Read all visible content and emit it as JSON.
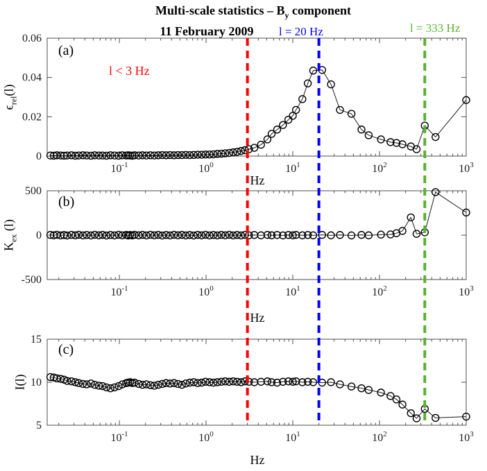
{
  "figure": {
    "title": {
      "pre": "Multi-scale statistics – B",
      "sub": "y",
      "post": " component"
    },
    "subtitle": "11 February 2009",
    "vlines": [
      {
        "x": 3,
        "color": "#ff0000",
        "label": "l < 3 Hz"
      },
      {
        "x": 20,
        "color": "#0000ff",
        "label": "l = 20 Hz"
      },
      {
        "x": 333,
        "color": "#56b42c",
        "label": "l = 333 Hz"
      }
    ],
    "colors": {
      "axis": "#4d4d4d",
      "data_line": "#1a1a1a",
      "marker": "#000000",
      "red": "#ff0000",
      "blue": "#0000ff",
      "green": "#56b42c"
    }
  },
  "chart_data": [
    {
      "type": "line",
      "panel": "a",
      "letter": "(a)",
      "xlabel": "Hz",
      "ylabel": {
        "base": "ϵ",
        "sub": "rel",
        "rest": "(l)"
      },
      "xscale": "log",
      "xlim": [
        0.0147,
        1000
      ],
      "ylim": [
        0,
        0.06
      ],
      "yticks": [
        0,
        0.02,
        0.04,
        0.06
      ],
      "ytick_labels": [
        "0",
        "0.02",
        "0.04",
        "0.06"
      ],
      "xticks": [
        0.1,
        1,
        10,
        100,
        1000
      ],
      "marker": "o",
      "x": [
        0.016,
        0.0175,
        0.019,
        0.021,
        0.023,
        0.025,
        0.028,
        0.031,
        0.034,
        0.038,
        0.042,
        0.047,
        0.052,
        0.058,
        0.064,
        0.071,
        0.079,
        0.088,
        0.098,
        0.108,
        0.12,
        0.126,
        0.133,
        0.141,
        0.15,
        0.167,
        0.185,
        0.205,
        0.228,
        0.253,
        0.281,
        0.312,
        0.346,
        0.384,
        0.427,
        0.474,
        0.526,
        0.584,
        0.648,
        0.72,
        0.8,
        0.888,
        0.986,
        1.095,
        1.216,
        1.35,
        1.5,
        1.665,
        1.849,
        2.053,
        2.279,
        2.531,
        2.81,
        3.12,
        3.6,
        4.3,
        5.1,
        5.7,
        6.6,
        7.7,
        8.9,
        10,
        10.9,
        12.9,
        14.9,
        17.2,
        21.8,
        27.6,
        35,
        47.5,
        62,
        75,
        104,
        134,
        157,
        184,
        230,
        268,
        333,
        443,
        1000
      ],
      "y": [
        0.0003,
        0.0002,
        0.0004,
        0.0003,
        0.0002,
        0.0003,
        0.0004,
        0.0002,
        0.0003,
        0.0004,
        0.0003,
        0.0002,
        0.0004,
        0.0003,
        0.0003,
        0.0002,
        0.0004,
        0.0003,
        0.0002,
        0.0004,
        0.0003,
        0.0004,
        0.0003,
        0.0002,
        0.0004,
        0.0003,
        0.0004,
        0.0003,
        0.0004,
        0.0003,
        0.0004,
        0.0005,
        0.0004,
        0.0005,
        0.0004,
        0.0005,
        0.0005,
        0.0006,
        0.0005,
        0.0006,
        0.0007,
        0.0007,
        0.0008,
        0.0008,
        0.0009,
        0.0011,
        0.0012,
        0.0014,
        0.0016,
        0.0019,
        0.0022,
        0.0026,
        0.003,
        0.0035,
        0.0042,
        0.0058,
        0.0085,
        0.0113,
        0.0135,
        0.0158,
        0.0185,
        0.0205,
        0.0235,
        0.029,
        0.037,
        0.0435,
        0.0438,
        0.0365,
        0.0235,
        0.0215,
        0.0135,
        0.0106,
        0.0085,
        0.0071,
        0.0067,
        0.006,
        0.0049,
        0.0035,
        0.0155,
        0.0097,
        0.0285
      ]
    },
    {
      "type": "line",
      "panel": "b",
      "letter": "(b)",
      "xlabel": "Hz",
      "ylabel": {
        "base": "K",
        "sub": "ex",
        "rest": " (l)"
      },
      "xscale": "log",
      "xlim": [
        0.0147,
        1000
      ],
      "ylim": [
        -500,
        500
      ],
      "yticks": [
        -500,
        0,
        500
      ],
      "ytick_labels": [
        "-500",
        "0",
        "500"
      ],
      "xticks": [
        0.1,
        1,
        10,
        100,
        1000
      ],
      "marker": "o",
      "x": [
        0.016,
        0.0175,
        0.019,
        0.021,
        0.023,
        0.025,
        0.028,
        0.031,
        0.034,
        0.038,
        0.042,
        0.047,
        0.052,
        0.058,
        0.064,
        0.071,
        0.079,
        0.088,
        0.098,
        0.108,
        0.12,
        0.126,
        0.133,
        0.141,
        0.15,
        0.167,
        0.185,
        0.205,
        0.228,
        0.253,
        0.281,
        0.312,
        0.346,
        0.384,
        0.427,
        0.474,
        0.526,
        0.584,
        0.648,
        0.72,
        0.8,
        0.888,
        0.986,
        1.095,
        1.216,
        1.35,
        1.5,
        1.665,
        1.849,
        2.053,
        2.279,
        2.531,
        2.81,
        3.12,
        3.6,
        4.3,
        5.1,
        5.7,
        6.6,
        7.7,
        8.9,
        10,
        10.9,
        12.9,
        14.9,
        17.2,
        21.8,
        27.6,
        35,
        47.5,
        62,
        75,
        104,
        134,
        157,
        184,
        230,
        268,
        333,
        443,
        1000
      ],
      "y": [
        3,
        -2,
        4,
        -3,
        2,
        -4,
        3,
        -2,
        4,
        -3,
        2,
        -3,
        4,
        -2,
        3,
        -4,
        2,
        -3,
        4,
        -2,
        3,
        -4,
        2,
        -3,
        4,
        -2,
        3,
        -3,
        4,
        -2,
        3,
        -4,
        2,
        -3,
        4,
        -2,
        3,
        -3,
        2,
        -4,
        3,
        -2,
        4,
        -3,
        2,
        -3,
        3,
        -2,
        4,
        -3,
        2,
        -3,
        3,
        -2,
        2,
        -2,
        3,
        -2,
        2,
        -3,
        2,
        -2,
        3,
        -2,
        2,
        -2,
        3,
        -2,
        2,
        -3,
        3,
        -2,
        6,
        8,
        22,
        48,
        200,
        15,
        32,
        485,
        255
      ]
    },
    {
      "type": "line",
      "panel": "c",
      "letter": "(c)",
      "xlabel": "Hz",
      "ylabel": {
        "base": "I(l)",
        "sub": "",
        "rest": ""
      },
      "xscale": "log",
      "xlim": [
        0.0147,
        1000
      ],
      "ylim": [
        5,
        15
      ],
      "yticks": [
        5,
        10,
        15
      ],
      "ytick_labels": [
        "5",
        "10",
        "15"
      ],
      "xticks": [
        0.1,
        1,
        10,
        100,
        1000
      ],
      "marker": "o",
      "x": [
        0.016,
        0.0175,
        0.019,
        0.021,
        0.023,
        0.025,
        0.028,
        0.031,
        0.034,
        0.038,
        0.042,
        0.047,
        0.052,
        0.058,
        0.064,
        0.071,
        0.079,
        0.088,
        0.098,
        0.108,
        0.12,
        0.126,
        0.133,
        0.141,
        0.15,
        0.167,
        0.185,
        0.205,
        0.228,
        0.253,
        0.281,
        0.312,
        0.346,
        0.384,
        0.427,
        0.474,
        0.526,
        0.584,
        0.648,
        0.72,
        0.8,
        0.888,
        0.986,
        1.095,
        1.216,
        1.35,
        1.5,
        1.665,
        1.849,
        2.053,
        2.279,
        2.531,
        2.81,
        3.12,
        3.6,
        4.3,
        5.1,
        5.7,
        6.6,
        7.7,
        8.9,
        10,
        10.9,
        12.9,
        14.9,
        17.2,
        21.8,
        27.6,
        35,
        47.5,
        62,
        75,
        104,
        134,
        157,
        184,
        230,
        268,
        333,
        443,
        1000
      ],
      "y": [
        10.6,
        10.55,
        10.45,
        10.4,
        10.3,
        10.15,
        10.1,
        10.0,
        9.9,
        9.8,
        9.75,
        9.85,
        9.7,
        9.6,
        9.55,
        9.4,
        9.3,
        9.4,
        9.55,
        9.75,
        9.9,
        9.95,
        10.0,
        9.9,
        9.95,
        9.8,
        9.7,
        9.75,
        9.65,
        9.6,
        9.7,
        9.8,
        9.9,
        9.85,
        9.9,
        9.8,
        9.7,
        9.85,
        9.95,
        10.0,
        9.9,
        9.95,
        10.05,
        10.0,
        9.95,
        10.0,
        10.05,
        10.1,
        10.05,
        10.1,
        10.05,
        10.0,
        10.1,
        10.05,
        10.0,
        10.05,
        10.1,
        10.0,
        9.95,
        10.05,
        10.1,
        10.05,
        10.1,
        10.0,
        10.05,
        10.0,
        9.95,
        10.0,
        9.75,
        9.5,
        9.3,
        9.1,
        8.8,
        8.4,
        8.0,
        7.4,
        6.4,
        5.8,
        6.9,
        5.85,
        6.0
      ]
    }
  ]
}
